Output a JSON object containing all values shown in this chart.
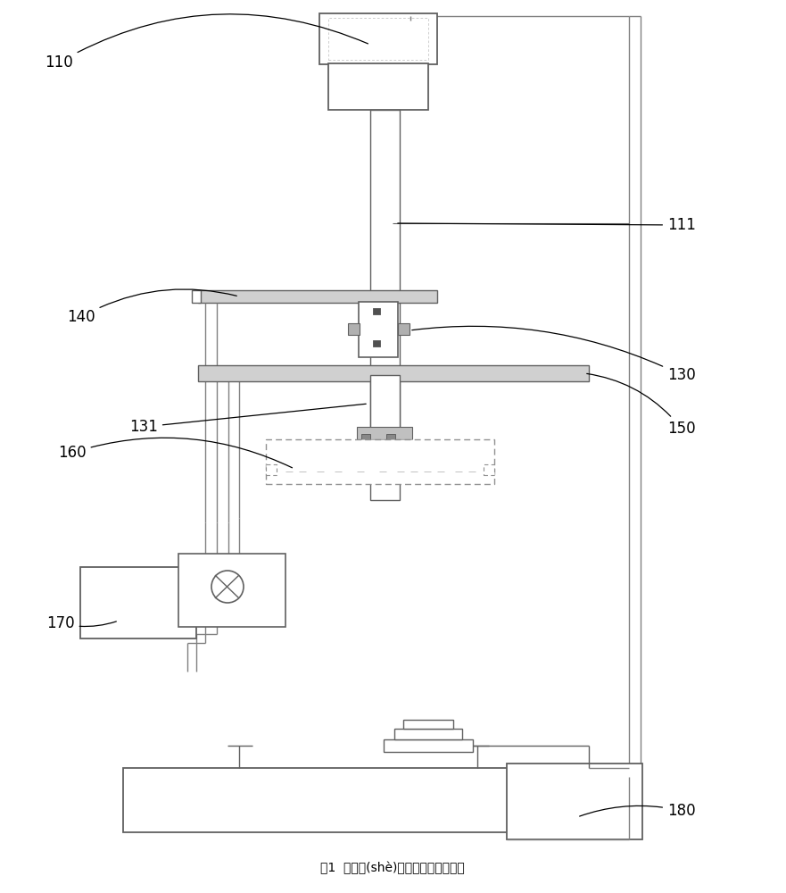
{
  "bg_color": "#ffffff",
  "lc": "#606060",
  "lc2": "#808080",
  "gray_fill": "#d0d0d0",
  "dark_fill": "#505050",
  "caption": "图1  测試設(shè)備的制造方法與工藝"
}
